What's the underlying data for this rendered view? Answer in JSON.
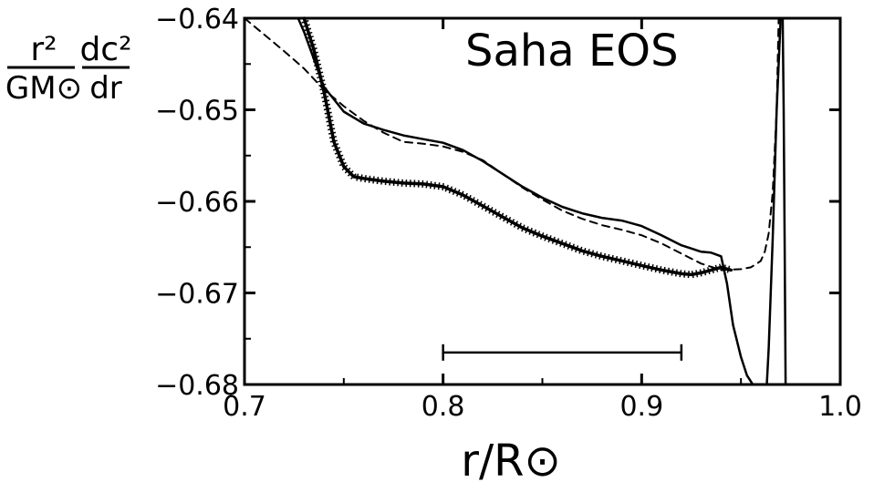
{
  "chart_data": {
    "type": "line",
    "title": "",
    "annotation": "Saha EOS",
    "ylabel": {
      "numerator_left": "r²",
      "numerator_right": "dc²",
      "denominator_left": "GM⊙",
      "denominator_right": "dr"
    },
    "xlabel": "r/R⊙",
    "xlim": [
      0.7,
      1.0
    ],
    "ylim": [
      -0.68,
      -0.64
    ],
    "grid": false,
    "legend": "none",
    "x_ticks": [
      0.7,
      0.8,
      0.9,
      1.0
    ],
    "x_tick_labels": [
      "0.7",
      "0.8",
      "0.9",
      "1.0"
    ],
    "y_ticks": [
      -0.64,
      -0.65,
      -0.66,
      -0.67,
      -0.68
    ],
    "y_tick_labels": [
      "−0.64",
      "−0.65",
      "−0.66",
      "−0.67",
      "−0.68"
    ],
    "series": [
      {
        "style": "solid",
        "x": [
          0.727,
          0.73,
          0.735,
          0.74,
          0.75,
          0.76,
          0.77,
          0.78,
          0.79,
          0.8,
          0.81,
          0.82,
          0.83,
          0.84,
          0.85,
          0.86,
          0.87,
          0.88,
          0.89,
          0.9,
          0.91,
          0.92,
          0.93,
          0.935,
          0.94,
          0.943,
          0.946,
          0.95,
          0.953,
          0.956,
          0.957
        ],
        "y": [
          -0.64,
          -0.6415,
          -0.6445,
          -0.6475,
          -0.6502,
          -0.6515,
          -0.6522,
          -0.6528,
          -0.6532,
          -0.6536,
          -0.6544,
          -0.6556,
          -0.657,
          -0.6584,
          -0.6596,
          -0.6606,
          -0.6613,
          -0.6618,
          -0.6621,
          -0.6627,
          -0.6637,
          -0.6648,
          -0.6655,
          -0.6656,
          -0.666,
          -0.669,
          -0.6735,
          -0.677,
          -0.679,
          -0.68,
          -0.68
        ]
      },
      {
        "style": "solid",
        "x": [
          0.963,
          0.964,
          0.966,
          0.968,
          0.97,
          0.971
        ],
        "y": [
          -0.68,
          -0.676,
          -0.664,
          -0.65,
          -0.64,
          -0.64
        ]
      },
      {
        "style": "solid",
        "x": [
          0.971,
          0.9715,
          0.972,
          0.9725
        ],
        "y": [
          -0.64,
          -0.65,
          -0.665,
          -0.68
        ]
      },
      {
        "style": "crossed",
        "x": [
          0.73,
          0.735,
          0.74,
          0.745,
          0.75,
          0.755,
          0.76,
          0.77,
          0.78,
          0.79,
          0.8,
          0.81,
          0.82,
          0.83,
          0.84,
          0.85,
          0.86,
          0.87,
          0.88,
          0.89,
          0.9,
          0.91,
          0.92,
          0.925,
          0.93,
          0.935,
          0.94,
          0.945
        ],
        "y": [
          -0.64,
          -0.6435,
          -0.648,
          -0.6535,
          -0.6562,
          -0.6573,
          -0.6575,
          -0.6578,
          -0.658,
          -0.6581,
          -0.6584,
          -0.6593,
          -0.6605,
          -0.6617,
          -0.6629,
          -0.6638,
          -0.6646,
          -0.6654,
          -0.666,
          -0.6665,
          -0.667,
          -0.6675,
          -0.6679,
          -0.668,
          -0.6678,
          -0.6675,
          -0.6672,
          -0.6675
        ]
      },
      {
        "style": "dashed",
        "x": [
          0.7,
          0.71,
          0.72,
          0.73,
          0.74,
          0.75,
          0.76,
          0.77,
          0.78,
          0.79,
          0.8,
          0.81,
          0.82,
          0.83,
          0.84,
          0.85,
          0.86,
          0.87,
          0.88,
          0.89,
          0.9,
          0.91,
          0.92,
          0.93,
          0.94,
          0.95,
          0.955,
          0.958,
          0.96,
          0.962,
          0.964,
          0.966,
          0.968,
          0.969
        ],
        "y": [
          -0.64,
          -0.6418,
          -0.6436,
          -0.6455,
          -0.6478,
          -0.6496,
          -0.6512,
          -0.6525,
          -0.6535,
          -0.6537,
          -0.654,
          -0.6546,
          -0.6555,
          -0.657,
          -0.6585,
          -0.6598,
          -0.661,
          -0.6619,
          -0.6626,
          -0.6631,
          -0.6637,
          -0.6646,
          -0.6657,
          -0.6668,
          -0.6675,
          -0.6674,
          -0.6672,
          -0.6668,
          -0.6665,
          -0.6655,
          -0.6635,
          -0.659,
          -0.65,
          -0.64
        ]
      }
    ],
    "error_bar": {
      "x_start": 0.8,
      "x_end": 0.92,
      "y": -0.6765
    }
  }
}
